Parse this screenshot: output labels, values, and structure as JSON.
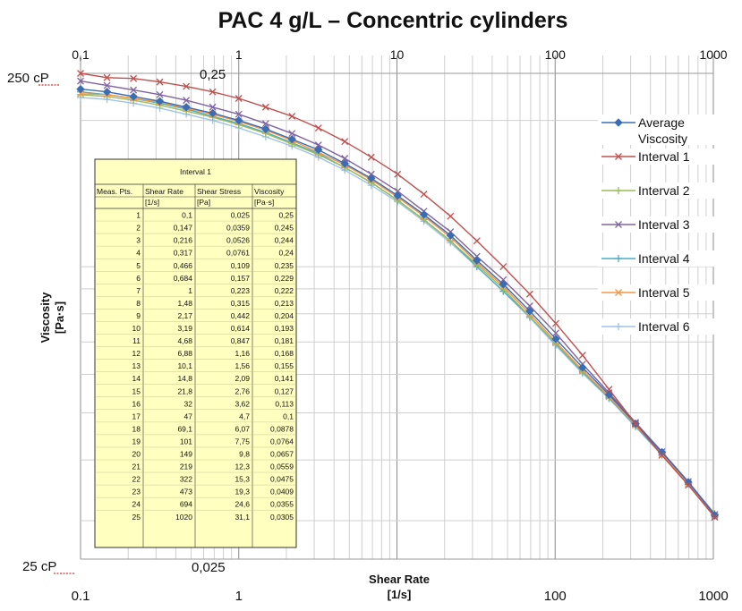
{
  "chart_data": {
    "type": "line",
    "title": "PAC  4 g/L – Concentric cylinders",
    "xlabel_line1": "Shear Rate",
    "xlabel_line2": "[1/s]",
    "ylabel_line1": "Viscosity",
    "ylabel_line2": "[Pa·s]",
    "x_scale": "log",
    "y_scale": "log",
    "xlim": [
      0.1,
      1000
    ],
    "ylim": [
      0.025,
      0.25
    ],
    "grid": true,
    "legend_position": "right",
    "x_ticks_top": [
      "0,1",
      "1",
      "10",
      "100",
      "1000"
    ],
    "x_ticks_bottom": [
      "0.1",
      "1",
      "100",
      "1000"
    ],
    "y_label_top_left": "250 cP",
    "y_label_top_inner": "0,25",
    "y_label_bottom_left": "25 cP",
    "y_label_bottom_inner": "0,025",
    "x": [
      0.1,
      0.147,
      0.216,
      0.317,
      0.466,
      0.684,
      1,
      1.48,
      2.17,
      3.19,
      4.68,
      6.88,
      10.1,
      14.8,
      21.8,
      32,
      47,
      69.1,
      101,
      149,
      219,
      322,
      473,
      694,
      1020
    ],
    "series": [
      {
        "name": "Average Viscosity",
        "color": "#3b6db5",
        "marker": "diamond",
        "values": [
          0.232,
          0.229,
          0.224,
          0.219,
          0.213,
          0.207,
          0.2,
          0.192,
          0.183,
          0.174,
          0.163,
          0.152,
          0.14,
          0.128,
          0.116,
          0.103,
          0.092,
          0.081,
          0.071,
          0.062,
          0.0545,
          0.0475,
          0.0415,
          0.036,
          0.0308
        ]
      },
      {
        "name": "Interval 1",
        "color": "#c0504d",
        "marker": "x",
        "values": [
          0.25,
          0.245,
          0.244,
          0.24,
          0.235,
          0.229,
          0.222,
          0.213,
          0.204,
          0.193,
          0.181,
          0.168,
          0.155,
          0.141,
          0.127,
          0.113,
          0.1,
          0.0878,
          0.0764,
          0.0657,
          0.0559,
          0.0475,
          0.0409,
          0.0355,
          0.0305
        ]
      },
      {
        "name": "Interval 2",
        "color": "#9bbb59",
        "marker": "plus",
        "values": [
          0.226,
          0.224,
          0.22,
          0.215,
          0.209,
          0.203,
          0.196,
          0.188,
          0.179,
          0.17,
          0.16,
          0.149,
          0.137,
          0.125,
          0.113,
          0.101,
          0.09,
          0.079,
          0.0695,
          0.061,
          0.054,
          0.0472,
          0.0413,
          0.036,
          0.031
        ]
      },
      {
        "name": "Interval 3",
        "color": "#8064a2",
        "marker": "x",
        "values": [
          0.241,
          0.236,
          0.231,
          0.226,
          0.22,
          0.213,
          0.206,
          0.197,
          0.188,
          0.178,
          0.167,
          0.155,
          0.143,
          0.13,
          0.118,
          0.105,
          0.094,
          0.083,
          0.073,
          0.063,
          0.055,
          0.0478,
          0.0416,
          0.0361,
          0.0309
        ]
      },
      {
        "name": "Interval 4",
        "color": "#4bacc6",
        "marker": "plus",
        "values": [
          0.229,
          0.226,
          0.222,
          0.217,
          0.211,
          0.204,
          0.197,
          0.189,
          0.18,
          0.171,
          0.16,
          0.149,
          0.137,
          0.125,
          0.113,
          0.1,
          0.089,
          0.079,
          0.0693,
          0.0607,
          0.0537,
          0.047,
          0.041,
          0.0357,
          0.0307
        ]
      },
      {
        "name": "Interval 5",
        "color": "#f79646",
        "marker": "x",
        "values": [
          0.227,
          0.226,
          0.222,
          0.218,
          0.212,
          0.206,
          0.199,
          0.191,
          0.182,
          0.172,
          0.162,
          0.151,
          0.139,
          0.127,
          0.115,
          0.102,
          0.091,
          0.08,
          0.07,
          0.0612,
          0.054,
          0.0472,
          0.0412,
          0.0358,
          0.0307
        ]
      },
      {
        "name": "Interval 6",
        "color": "#9dc3e6",
        "marker": "plus",
        "values": [
          0.223,
          0.221,
          0.217,
          0.212,
          0.206,
          0.2,
          0.193,
          0.185,
          0.177,
          0.168,
          0.158,
          0.147,
          0.136,
          0.124,
          0.112,
          0.1,
          0.089,
          0.0785,
          0.0688,
          0.0603,
          0.0535,
          0.0468,
          0.0409,
          0.0356,
          0.0306
        ]
      }
    ],
    "legend_labels": [
      [
        "Average",
        "Viscosity"
      ],
      [
        "Interval 1"
      ],
      [
        "Interval 2"
      ],
      [
        "Interval 3"
      ],
      [
        "Interval 4"
      ],
      [
        "Interval 5"
      ],
      [
        "Interval 6"
      ]
    ]
  },
  "table": {
    "title": "Interval 1",
    "headers": [
      "Meas. Pts.",
      "Shear Rate",
      "Shear Stress",
      "Viscosity"
    ],
    "units": [
      "",
      "[1/s]",
      "[Pa]",
      "[Pa·s]"
    ],
    "background": "#ffffc0",
    "rows": [
      [
        "1",
        "0,1",
        "0,025",
        "0,25"
      ],
      [
        "2",
        "0,147",
        "0,0359",
        "0,245"
      ],
      [
        "3",
        "0,216",
        "0,0526",
        "0,244"
      ],
      [
        "4",
        "0,317",
        "0,0761",
        "0,24"
      ],
      [
        "5",
        "0,466",
        "0,109",
        "0,235"
      ],
      [
        "6",
        "0,684",
        "0,157",
        "0,229"
      ],
      [
        "7",
        "1",
        "0,223",
        "0,222"
      ],
      [
        "8",
        "1,48",
        "0,315",
        "0,213"
      ],
      [
        "9",
        "2,17",
        "0,442",
        "0,204"
      ],
      [
        "10",
        "3,19",
        "0,614",
        "0,193"
      ],
      [
        "11",
        "4,68",
        "0,847",
        "0,181"
      ],
      [
        "12",
        "6,88",
        "1,16",
        "0,168"
      ],
      [
        "13",
        "10,1",
        "1,56",
        "0,155"
      ],
      [
        "14",
        "14,8",
        "2,09",
        "0,141"
      ],
      [
        "15",
        "21,8",
        "2,76",
        "0,127"
      ],
      [
        "16",
        "32",
        "3,62",
        "0,113"
      ],
      [
        "17",
        "47",
        "4,7",
        "0,1"
      ],
      [
        "18",
        "69,1",
        "6,07",
        "0,0878"
      ],
      [
        "19",
        "101",
        "7,75",
        "0,0764"
      ],
      [
        "20",
        "149",
        "9,8",
        "0,0657"
      ],
      [
        "21",
        "219",
        "12,3",
        "0,0559"
      ],
      [
        "22",
        "322",
        "15,3",
        "0,0475"
      ],
      [
        "23",
        "473",
        "19,3",
        "0,0409"
      ],
      [
        "24",
        "694",
        "24,6",
        "0,0355"
      ],
      [
        "25",
        "1020",
        "31,1",
        "0,0305"
      ]
    ]
  }
}
